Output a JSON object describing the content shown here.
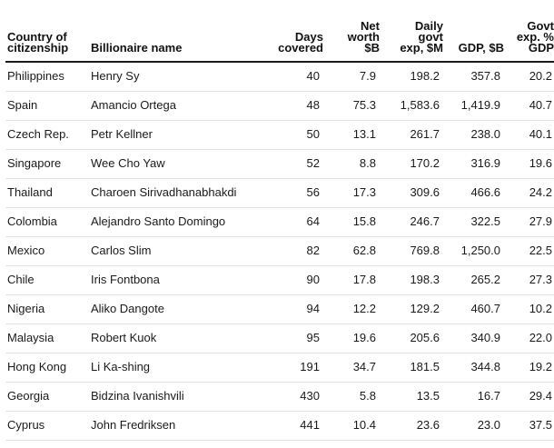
{
  "table": {
    "headers": {
      "country_line1": "Country of",
      "country_line2": "citizenship",
      "name": "Billionaire name",
      "days_line1": "Days",
      "days_line2": "covered",
      "net_line1": "Net",
      "net_line2": "worth",
      "net_line3": "$B",
      "daily_line1": "Daily",
      "daily_line2": "govt",
      "daily_line3": "exp, $M",
      "gdp": "GDP, $B",
      "govt_line1": "Govt",
      "govt_line2": "exp. %",
      "govt_line3": "GDP"
    },
    "rows": [
      {
        "country": "Philippines",
        "name": "Henry Sy",
        "days": "40",
        "net_worth": "7.9",
        "daily_exp": "198.2",
        "gdp": "357.8",
        "govt_pct": "20.2"
      },
      {
        "country": "Spain",
        "name": "Amancio Ortega",
        "days": "48",
        "net_worth": "75.3",
        "daily_exp": "1,583.6",
        "gdp": "1,419.9",
        "govt_pct": "40.7"
      },
      {
        "country": "Czech Rep.",
        "name": "Petr Kellner",
        "days": "50",
        "net_worth": "13.1",
        "daily_exp": "261.7",
        "gdp": "238.0",
        "govt_pct": "40.1"
      },
      {
        "country": "Singapore",
        "name": "Wee Cho Yaw",
        "days": "52",
        "net_worth": "8.8",
        "daily_exp": "170.2",
        "gdp": "316.9",
        "govt_pct": "19.6"
      },
      {
        "country": "Thailand",
        "name": "Charoen Sirivadhanabhakdi",
        "days": "56",
        "net_worth": "17.3",
        "daily_exp": "309.6",
        "gdp": "466.6",
        "govt_pct": "24.2"
      },
      {
        "country": "Colombia",
        "name": "Alejandro Santo Domingo",
        "days": "64",
        "net_worth": "15.8",
        "daily_exp": "246.7",
        "gdp": "322.5",
        "govt_pct": "27.9"
      },
      {
        "country": "Mexico",
        "name": "Carlos Slim",
        "days": "82",
        "net_worth": "62.8",
        "daily_exp": "769.8",
        "gdp": "1,250.0",
        "govt_pct": "22.5"
      },
      {
        "country": "Chile",
        "name": "Iris Fontbona",
        "days": "90",
        "net_worth": "17.8",
        "daily_exp": "198.3",
        "gdp": "265.2",
        "govt_pct": "27.3"
      },
      {
        "country": "Nigeria",
        "name": "Aliko Dangote",
        "days": "94",
        "net_worth": "12.2",
        "daily_exp": "129.2",
        "gdp": "460.7",
        "govt_pct": "10.2"
      },
      {
        "country": "Malaysia",
        "name": "Robert Kuok",
        "days": "95",
        "net_worth": "19.6",
        "daily_exp": "205.6",
        "gdp": "340.9",
        "govt_pct": "22.0"
      },
      {
        "country": "Hong Kong",
        "name": "Li Ka-shing",
        "days": "191",
        "net_worth": "34.7",
        "daily_exp": "181.5",
        "gdp": "344.8",
        "govt_pct": "19.2"
      },
      {
        "country": "Georgia",
        "name": "Bidzina Ivanishvili",
        "days": "430",
        "net_worth": "5.8",
        "daily_exp": "13.5",
        "gdp": "16.7",
        "govt_pct": "29.4"
      },
      {
        "country": "Cyprus",
        "name": "John Fredriksen",
        "days": "441",
        "net_worth": "10.4",
        "daily_exp": "23.6",
        "gdp": "23.0",
        "govt_pct": "37.5"
      }
    ]
  }
}
